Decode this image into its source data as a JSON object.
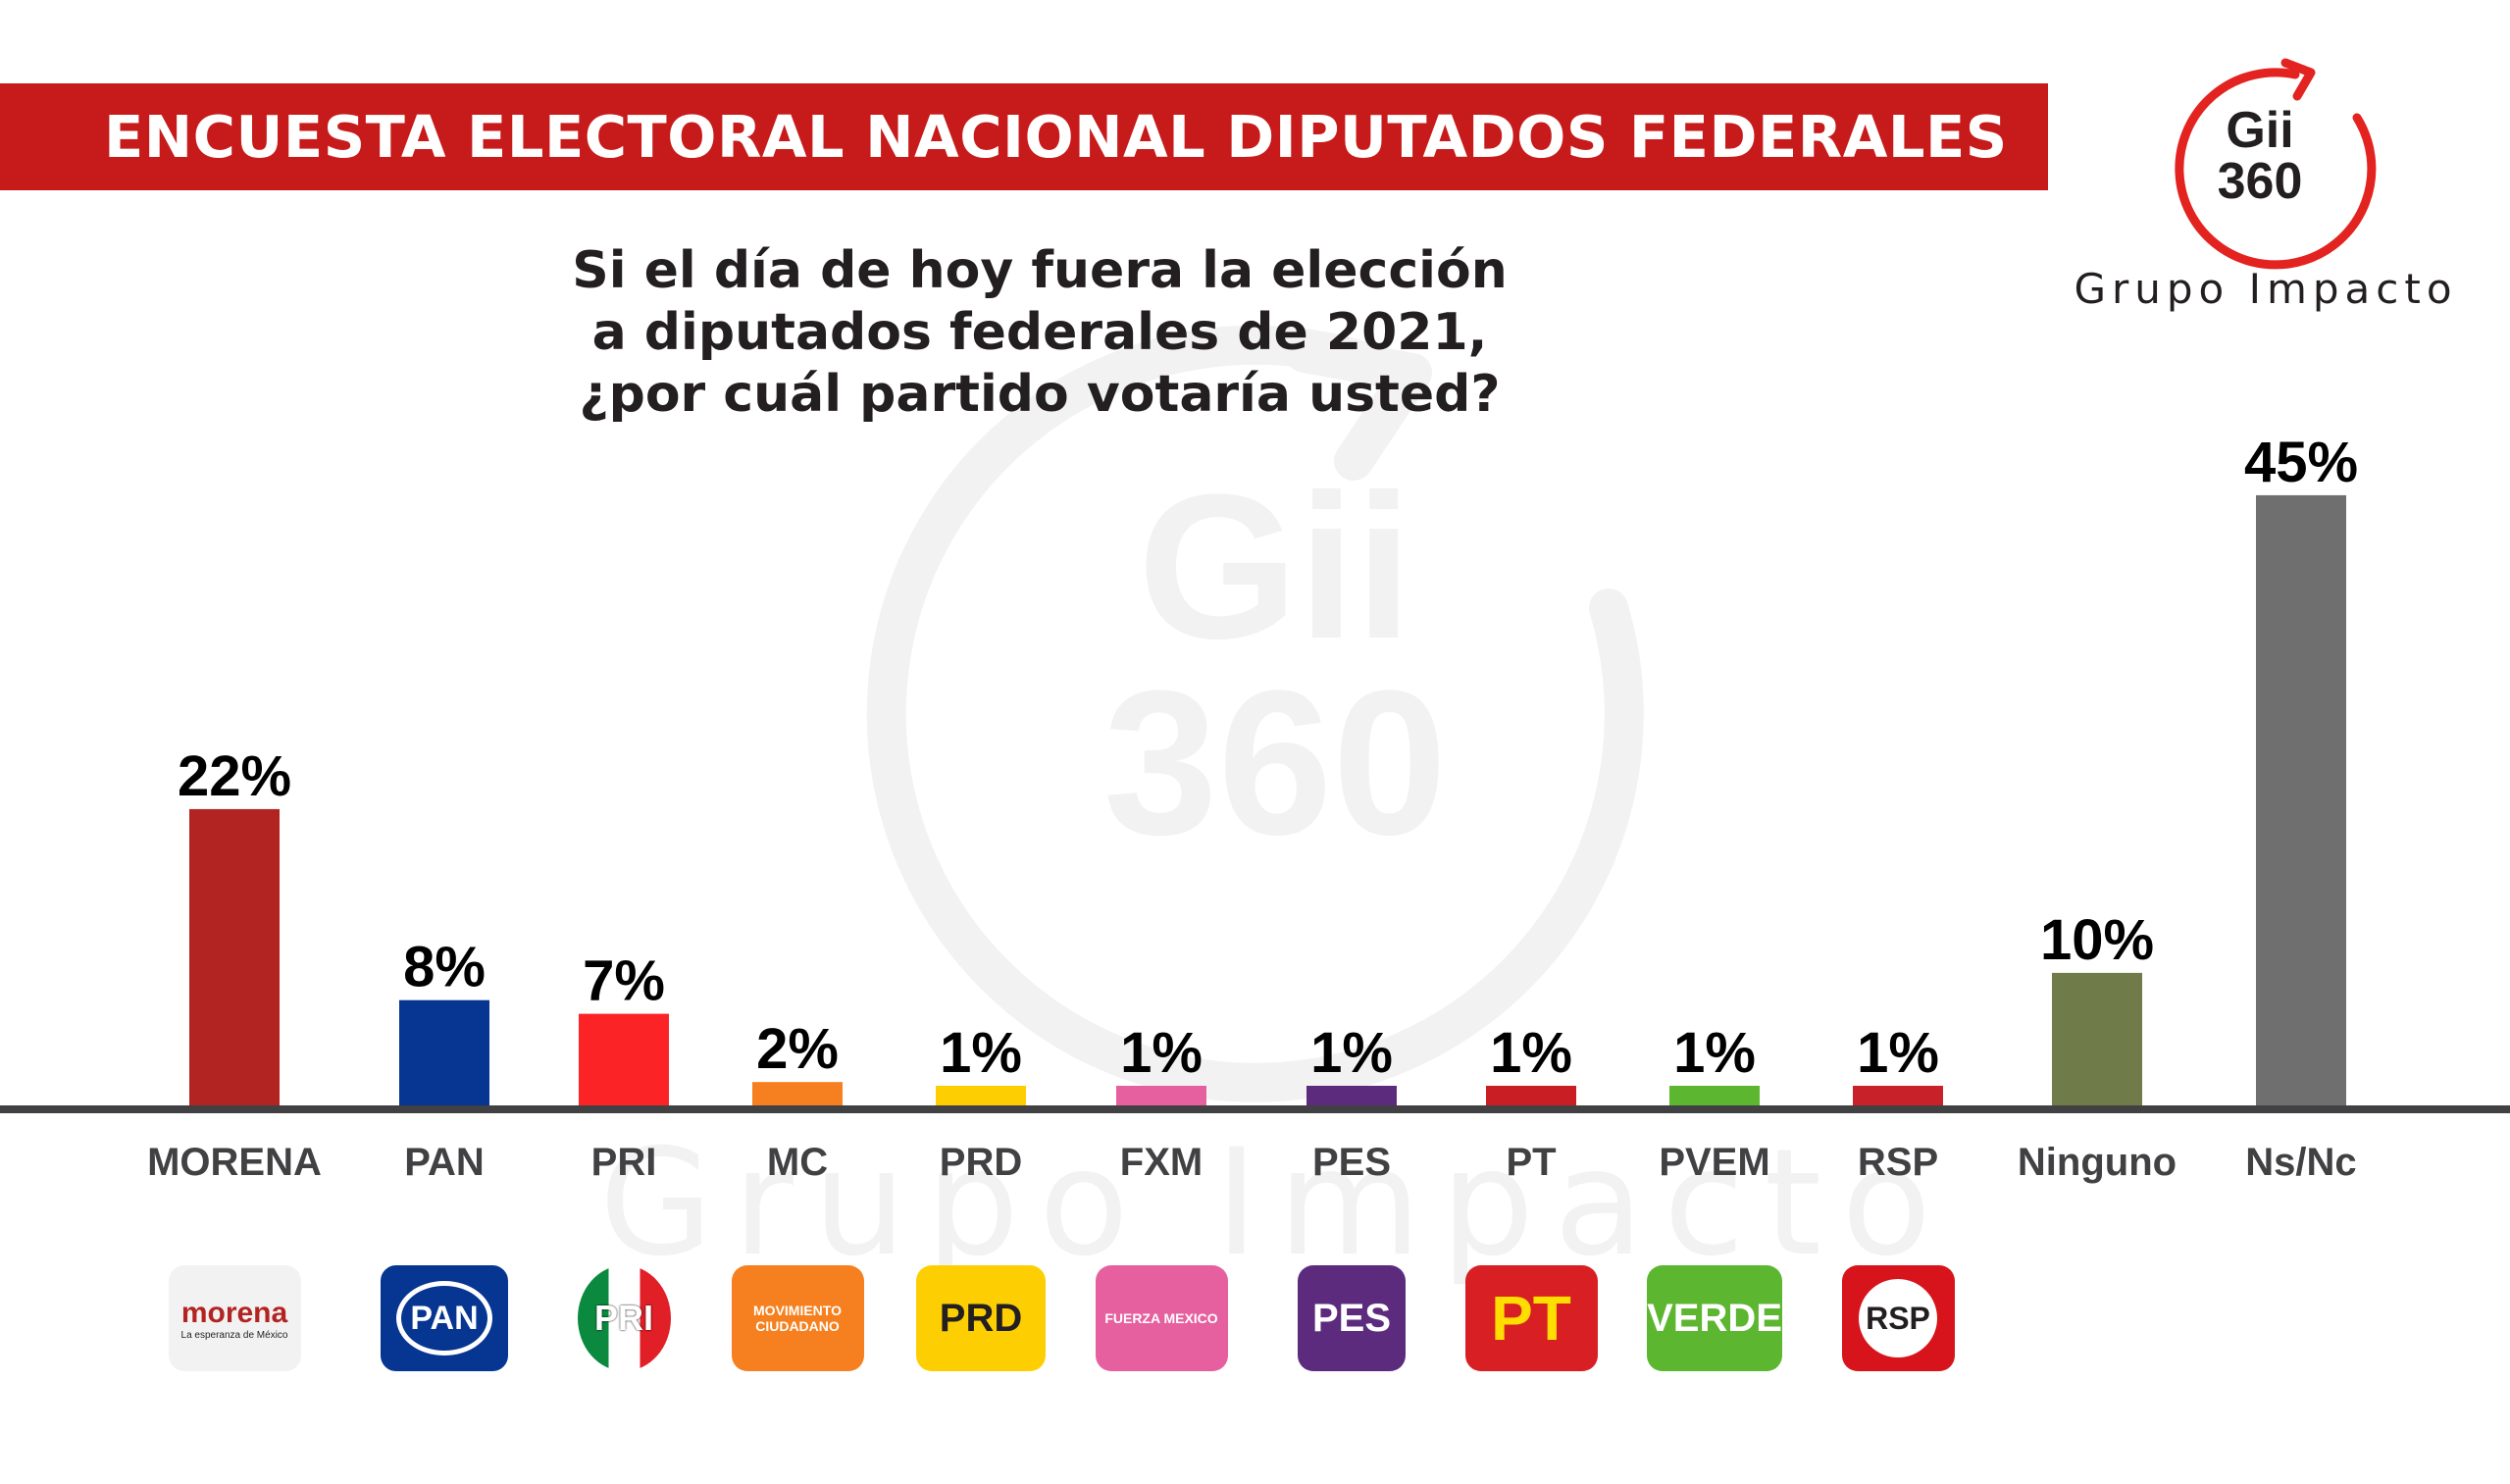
{
  "header": {
    "title": "ENCUESTA ELECTORAL NACIONAL DIPUTADOS FEDERALES"
  },
  "question": {
    "line1": "Si el día de hoy fuera la elección",
    "line2": "a diputados federales de 2021,",
    "line3": "¿por cuál partido votaría usted?"
  },
  "brand": {
    "logo_line1": "Gii",
    "logo_line2": "360",
    "name": "Grupo Impacto",
    "color": "#e3231f"
  },
  "watermark": {
    "line1": "Gii",
    "line2": "360",
    "caption": "Grupo Impacto"
  },
  "chart_data": {
    "type": "bar",
    "categories": [
      "MORENA",
      "PAN",
      "PRI",
      "MC",
      "PRD",
      "FXM",
      "PES",
      "PT",
      "PVEM",
      "RSP",
      "Ninguno",
      "Ns/Nc"
    ],
    "values": [
      22,
      8,
      7,
      2,
      1,
      1,
      1,
      1,
      1,
      1,
      10,
      45
    ],
    "value_labels": [
      "22%",
      "8%",
      "7%",
      "2%",
      "1%",
      "1%",
      "1%",
      "1%",
      "1%",
      "1%",
      "10%",
      "45%"
    ],
    "colors": [
      "#b22421",
      "#063592",
      "#fc2327",
      "#f6801f",
      "#fdcf03",
      "#e6609f",
      "#5d2b7e",
      "#c91e23",
      "#5cb630",
      "#c8212a",
      "#6f7c4a",
      "#6f6f6f"
    ],
    "ylim": [
      0,
      46
    ],
    "grid": false,
    "legend": "none"
  },
  "logos": [
    {
      "icon": "morena-logo",
      "text": "morena",
      "sub": "La esperanza de México",
      "bg": "#f2f2f2",
      "fg": "#b22421"
    },
    {
      "icon": "pan-logo",
      "text": "PAN",
      "bg": "#063592",
      "fg": "#ffffff"
    },
    {
      "icon": "pri-logo",
      "text": "PRI",
      "bg": "#ffffff",
      "fg": "#231f20"
    },
    {
      "icon": "mc-logo",
      "text": "MOVIMIENTO CIUDADANO",
      "bg": "#f6801f",
      "fg": "#ffffff"
    },
    {
      "icon": "prd-logo",
      "text": "PRD",
      "bg": "#fdcf03",
      "fg": "#231f20"
    },
    {
      "icon": "fxm-logo",
      "text": "FUERZA MEXICO",
      "bg": "#e6609f",
      "fg": "#ffffff"
    },
    {
      "icon": "pes-logo",
      "text": "PES",
      "bg": "#5d2b7e",
      "fg": "#ffffff"
    },
    {
      "icon": "pt-logo",
      "text": "PT",
      "bg": "#d71f24",
      "fg": "#ffdd00"
    },
    {
      "icon": "verde-logo",
      "text": "VERDE",
      "bg": "#5cb630",
      "fg": "#ffffff"
    },
    {
      "icon": "rsp-logo",
      "text": "RSP",
      "bg": "#d7141c",
      "fg": "#231f20"
    }
  ]
}
